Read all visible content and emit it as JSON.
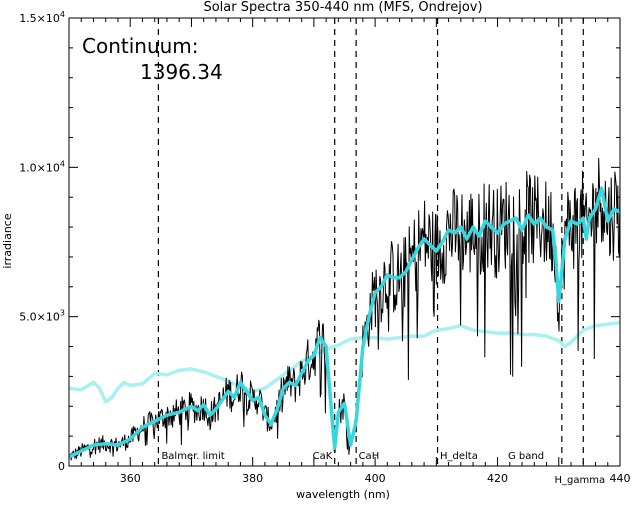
{
  "chart_data": {
    "type": "line",
    "title": "Solar Spectra 350-440 nm (MFS, Ondrejov)",
    "xlabel": "wavelength (nm)",
    "ylabel": "irradiance",
    "xlim": [
      350,
      440
    ],
    "ylim": [
      0,
      15000
    ],
    "x_ticks": [
      {
        "value": 360,
        "label": "360"
      },
      {
        "value": 380,
        "label": "380"
      },
      {
        "value": 400,
        "label": "400"
      },
      {
        "value": 420,
        "label": "420"
      },
      {
        "value": 440,
        "label": "440"
      }
    ],
    "y_ticks": [
      {
        "value": 0,
        "mant": "0",
        "exp": ""
      },
      {
        "value": 5000,
        "mant": "5.0×10",
        "exp": "3"
      },
      {
        "value": 10000,
        "mant": "1.0×10",
        "exp": "4"
      },
      {
        "value": 15000,
        "mant": "1.5×10",
        "exp": "4"
      }
    ],
    "annotations": [
      {
        "x": 364.6,
        "label": "Balmer. limit",
        "label_x": 365.1
      },
      {
        "x": 393.4,
        "label": "CaK",
        "label_x": 389.8
      },
      {
        "x": 396.9,
        "label": "CaH",
        "label_x": 397.3
      },
      {
        "x": 410.2,
        "label": "H_delta",
        "label_x": 410.6
      },
      {
        "x": 430.5,
        "label": "G band",
        "label_x": 421.7
      },
      {
        "x": 434.0,
        "label": "H_gamma",
        "label_x": 429.3
      }
    ],
    "continuum_label": "Continuum:",
    "continuum_value": "1396.34",
    "colors": {
      "spectrum": "#000000",
      "smoothed": "#37d7e0",
      "continuum": "#a8f0f2",
      "markers": "#000000"
    },
    "series": [
      {
        "key": "smoothed",
        "x": [
          350,
          352,
          354,
          356,
          358,
          359,
          360,
          362,
          364,
          366,
          368,
          369,
          370,
          371,
          372,
          373,
          374,
          375,
          376,
          377,
          378,
          379,
          380,
          381,
          382,
          383,
          384,
          385,
          386,
          387,
          388,
          389,
          390,
          391,
          392,
          393,
          393.4,
          394,
          395,
          396,
          396.9,
          398,
          399,
          400,
          401,
          402,
          403,
          404,
          405,
          406,
          407,
          408,
          409,
          410,
          411,
          412,
          413,
          414,
          415,
          416,
          417,
          418,
          419,
          420,
          421,
          422,
          423,
          424,
          425,
          426,
          427,
          428,
          429,
          429.5,
          430,
          430.5,
          431,
          432,
          433,
          434,
          434.5,
          435,
          436,
          437,
          438,
          439,
          440
        ],
        "y": [
          300,
          500,
          700,
          750,
          700,
          800,
          900,
          1300,
          1500,
          1700,
          1800,
          1900,
          2000,
          1850,
          2050,
          1700,
          1900,
          2200,
          2500,
          2300,
          2800,
          2500,
          2200,
          2300,
          1700,
          1400,
          1900,
          2600,
          2800,
          2700,
          3100,
          3500,
          3700,
          4300,
          4000,
          1500,
          600,
          1800,
          2100,
          700,
          1500,
          4000,
          5000,
          5800,
          6000,
          6400,
          6300,
          6300,
          6500,
          6900,
          7300,
          7600,
          7400,
          7200,
          7500,
          7900,
          7800,
          8000,
          7600,
          8000,
          7700,
          8200,
          8000,
          7800,
          8100,
          8200,
          8300,
          7900,
          8400,
          8100,
          8300,
          8000,
          7900,
          7000,
          5500,
          6500,
          7600,
          8200,
          8100,
          8300,
          7600,
          8300,
          8600,
          9300,
          8200,
          8600,
          8500
        ]
      },
      {
        "key": "continuum",
        "x": [
          350,
          352,
          354,
          355,
          356,
          357,
          358,
          359,
          360,
          362,
          364,
          366,
          368,
          370,
          372,
          374,
          376,
          378,
          380,
          382,
          384,
          386,
          388,
          390,
          392,
          394,
          396,
          398,
          400,
          402,
          404,
          406,
          408,
          410,
          412,
          414,
          416,
          418,
          420,
          422,
          424,
          426,
          428,
          430,
          431,
          432,
          434,
          436,
          438,
          440
        ],
        "y": [
          2600,
          2550,
          2800,
          2600,
          2150,
          2300,
          2600,
          2800,
          2700,
          2750,
          3100,
          3050,
          3200,
          3250,
          3150,
          3000,
          2850,
          2650,
          2500,
          2600,
          2900,
          3200,
          3500,
          3700,
          3900,
          4050,
          4250,
          4300,
          4300,
          4250,
          4300,
          4350,
          4350,
          4550,
          4600,
          4700,
          4550,
          4500,
          4450,
          4450,
          4400,
          4400,
          4350,
          4200,
          4000,
          4150,
          4550,
          4700,
          4750,
          4800
        ]
      }
    ]
  }
}
